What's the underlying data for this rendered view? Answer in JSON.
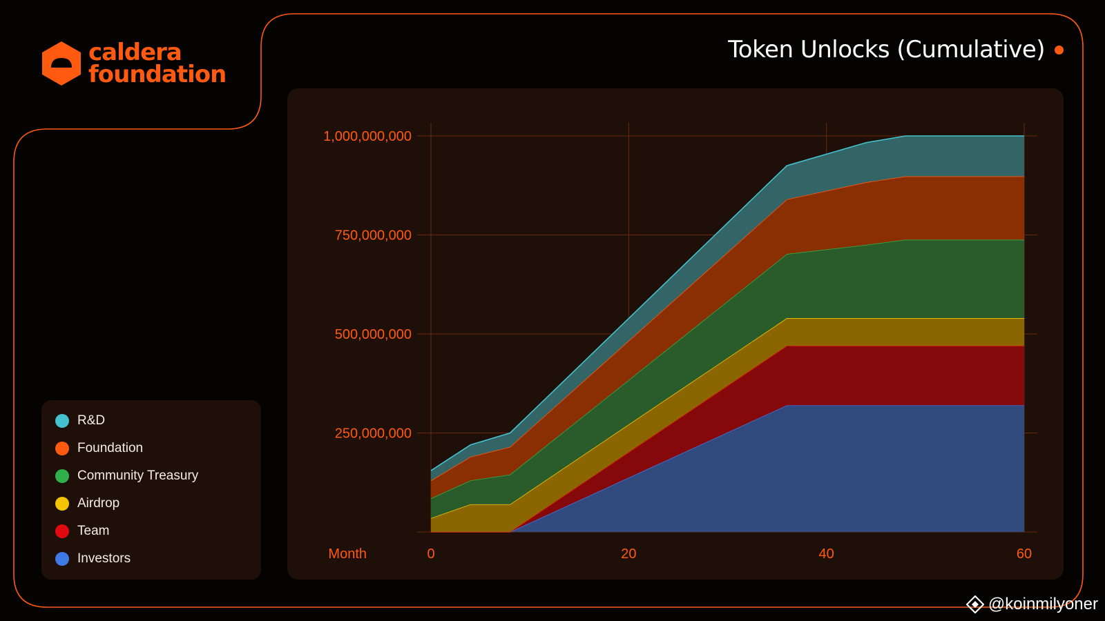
{
  "brand": {
    "line1": "caldera",
    "line2": "foundation",
    "color": "#ff5a0f"
  },
  "header": {
    "title": "Token Unlocks (Cumulative)"
  },
  "legend": {
    "items": [
      {
        "label": "R&D",
        "color": "#45c2cf"
      },
      {
        "label": "Foundation",
        "color": "#ff5a0f"
      },
      {
        "label": "Community Treasury",
        "color": "#2fb04a"
      },
      {
        "label": "Airdrop",
        "color": "#f5c400"
      },
      {
        "label": "Team",
        "color": "#e0090f"
      },
      {
        "label": "Investors",
        "color": "#3e79e6"
      }
    ]
  },
  "watermark": {
    "text": "@koinmilyoner"
  },
  "chart_data": {
    "type": "area",
    "stacked": true,
    "xlabel": "Month",
    "ylabel": "",
    "title": "Token Unlocks (Cumulative)",
    "xlim": [
      0,
      60
    ],
    "ylim": [
      0,
      1000000000
    ],
    "xticks": [
      0,
      20,
      40,
      60
    ],
    "yticks": [
      250000000,
      500000000,
      750000000,
      1000000000
    ],
    "ytick_labels": [
      "250,000,000",
      "500,000,000",
      "750,000,000",
      "1,000,000,000"
    ],
    "grid": true,
    "legend_position": "left",
    "x": [
      0,
      4,
      8,
      36,
      44,
      48,
      60
    ],
    "series": [
      {
        "name": "Investors",
        "color": "#3e79e6",
        "fill": "#314a7d",
        "values": [
          0,
          0,
          0,
          320000000,
          320000000,
          320000000,
          320000000
        ]
      },
      {
        "name": "Team",
        "color": "#e0090f",
        "fill": "#85090a",
        "values": [
          0,
          0,
          0,
          150000000,
          150000000,
          150000000,
          150000000
        ]
      },
      {
        "name": "Airdrop",
        "color": "#f5c400",
        "fill": "#8a6500",
        "values": [
          35000000,
          70000000,
          70000000,
          70000000,
          70000000,
          70000000,
          70000000
        ]
      },
      {
        "name": "Community Treasury",
        "color": "#2fb04a",
        "fill": "#2a5b2b",
        "values": [
          50000000,
          60000000,
          75000000,
          162000000,
          185000000,
          198000000,
          198000000
        ]
      },
      {
        "name": "Foundation",
        "color": "#ff5a0f",
        "fill": "#8a2e03",
        "values": [
          45000000,
          60000000,
          70000000,
          138000000,
          158000000,
          160000000,
          160000000
        ]
      },
      {
        "name": "R&D",
        "color": "#45c2cf",
        "fill": "#336566",
        "values": [
          25000000,
          30000000,
          35000000,
          85000000,
          100000000,
          102000000,
          102000000
        ]
      }
    ]
  }
}
